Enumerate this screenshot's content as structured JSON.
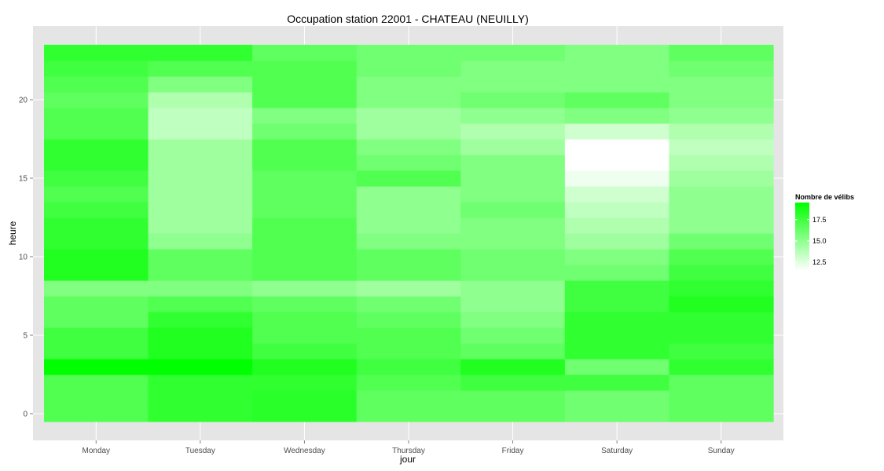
{
  "chart_data": {
    "type": "heatmap",
    "title": "Occupation station 22001 - CHATEAU (NEUILLY)",
    "xlabel": "jour",
    "ylabel": "heure",
    "x_categories": [
      "Monday",
      "Tuesday",
      "Wednesday",
      "Thursday",
      "Friday",
      "Saturday",
      "Sunday"
    ],
    "y_hours": [
      0,
      1,
      2,
      3,
      4,
      5,
      6,
      7,
      8,
      9,
      10,
      11,
      12,
      13,
      14,
      15,
      16,
      17,
      18,
      19,
      20,
      21,
      22,
      23
    ],
    "y_ticks": [
      0,
      5,
      10,
      15,
      20
    ],
    "ylim": [
      -0.5,
      23.5
    ],
    "grid": true,
    "legend": {
      "title": "Nombre de vélibs",
      "position": "right",
      "ticks": [
        12.5,
        15.0,
        17.5
      ],
      "tick_labels": [
        "12.5",
        "15.0",
        "17.5"
      ],
      "min": 11.5,
      "max": 19.5,
      "low_color": "#ffffff",
      "high_color": "#00ff00"
    },
    "values": [
      [
        17.0,
        18.0,
        18.2,
        16.5,
        16.5,
        16.0,
        16.5
      ],
      [
        17.0,
        18.0,
        18.2,
        16.5,
        16.5,
        16.0,
        16.5
      ],
      [
        17.0,
        18.0,
        18.0,
        17.0,
        17.5,
        17.5,
        16.5
      ],
      [
        19.5,
        19.5,
        18.5,
        17.5,
        18.5,
        16.0,
        18.0
      ],
      [
        17.5,
        18.5,
        17.5,
        17.0,
        16.5,
        18.0,
        17.5
      ],
      [
        17.5,
        18.5,
        17.0,
        17.0,
        16.0,
        18.0,
        18.0
      ],
      [
        16.5,
        18.0,
        17.0,
        16.5,
        15.5,
        18.0,
        18.0
      ],
      [
        16.5,
        17.0,
        16.5,
        16.0,
        15.0,
        17.5,
        18.5
      ],
      [
        15.5,
        15.5,
        15.0,
        14.5,
        15.0,
        17.5,
        18.0
      ],
      [
        18.5,
        16.5,
        17.0,
        16.5,
        16.0,
        16.0,
        17.5
      ],
      [
        18.5,
        16.5,
        17.0,
        16.5,
        16.0,
        15.5,
        17.0
      ],
      [
        18.0,
        15.0,
        17.0,
        15.5,
        15.5,
        14.5,
        16.0
      ],
      [
        18.0,
        14.5,
        17.0,
        15.0,
        15.5,
        14.0,
        15.0
      ],
      [
        17.5,
        14.5,
        16.5,
        15.0,
        16.0,
        13.5,
        15.0
      ],
      [
        17.0,
        14.5,
        16.5,
        15.0,
        15.5,
        13.0,
        15.0
      ],
      [
        17.5,
        14.5,
        16.5,
        17.0,
        15.5,
        12.0,
        14.5
      ],
      [
        18.0,
        14.5,
        17.0,
        16.0,
        15.5,
        11.5,
        14.0
      ],
      [
        18.0,
        14.5,
        17.0,
        15.5,
        14.5,
        11.5,
        13.5
      ],
      [
        17.0,
        13.5,
        16.0,
        14.5,
        14.0,
        13.0,
        14.0
      ],
      [
        17.0,
        13.5,
        15.5,
        14.5,
        15.0,
        15.5,
        15.0
      ],
      [
        16.5,
        14.0,
        17.0,
        15.5,
        16.0,
        16.5,
        15.5
      ],
      [
        17.0,
        15.5,
        17.0,
        15.5,
        15.5,
        15.5,
        15.5
      ],
      [
        17.5,
        17.0,
        17.0,
        16.0,
        15.5,
        15.5,
        16.0
      ],
      [
        18.0,
        18.0,
        16.5,
        16.0,
        16.0,
        15.5,
        16.5
      ]
    ]
  }
}
